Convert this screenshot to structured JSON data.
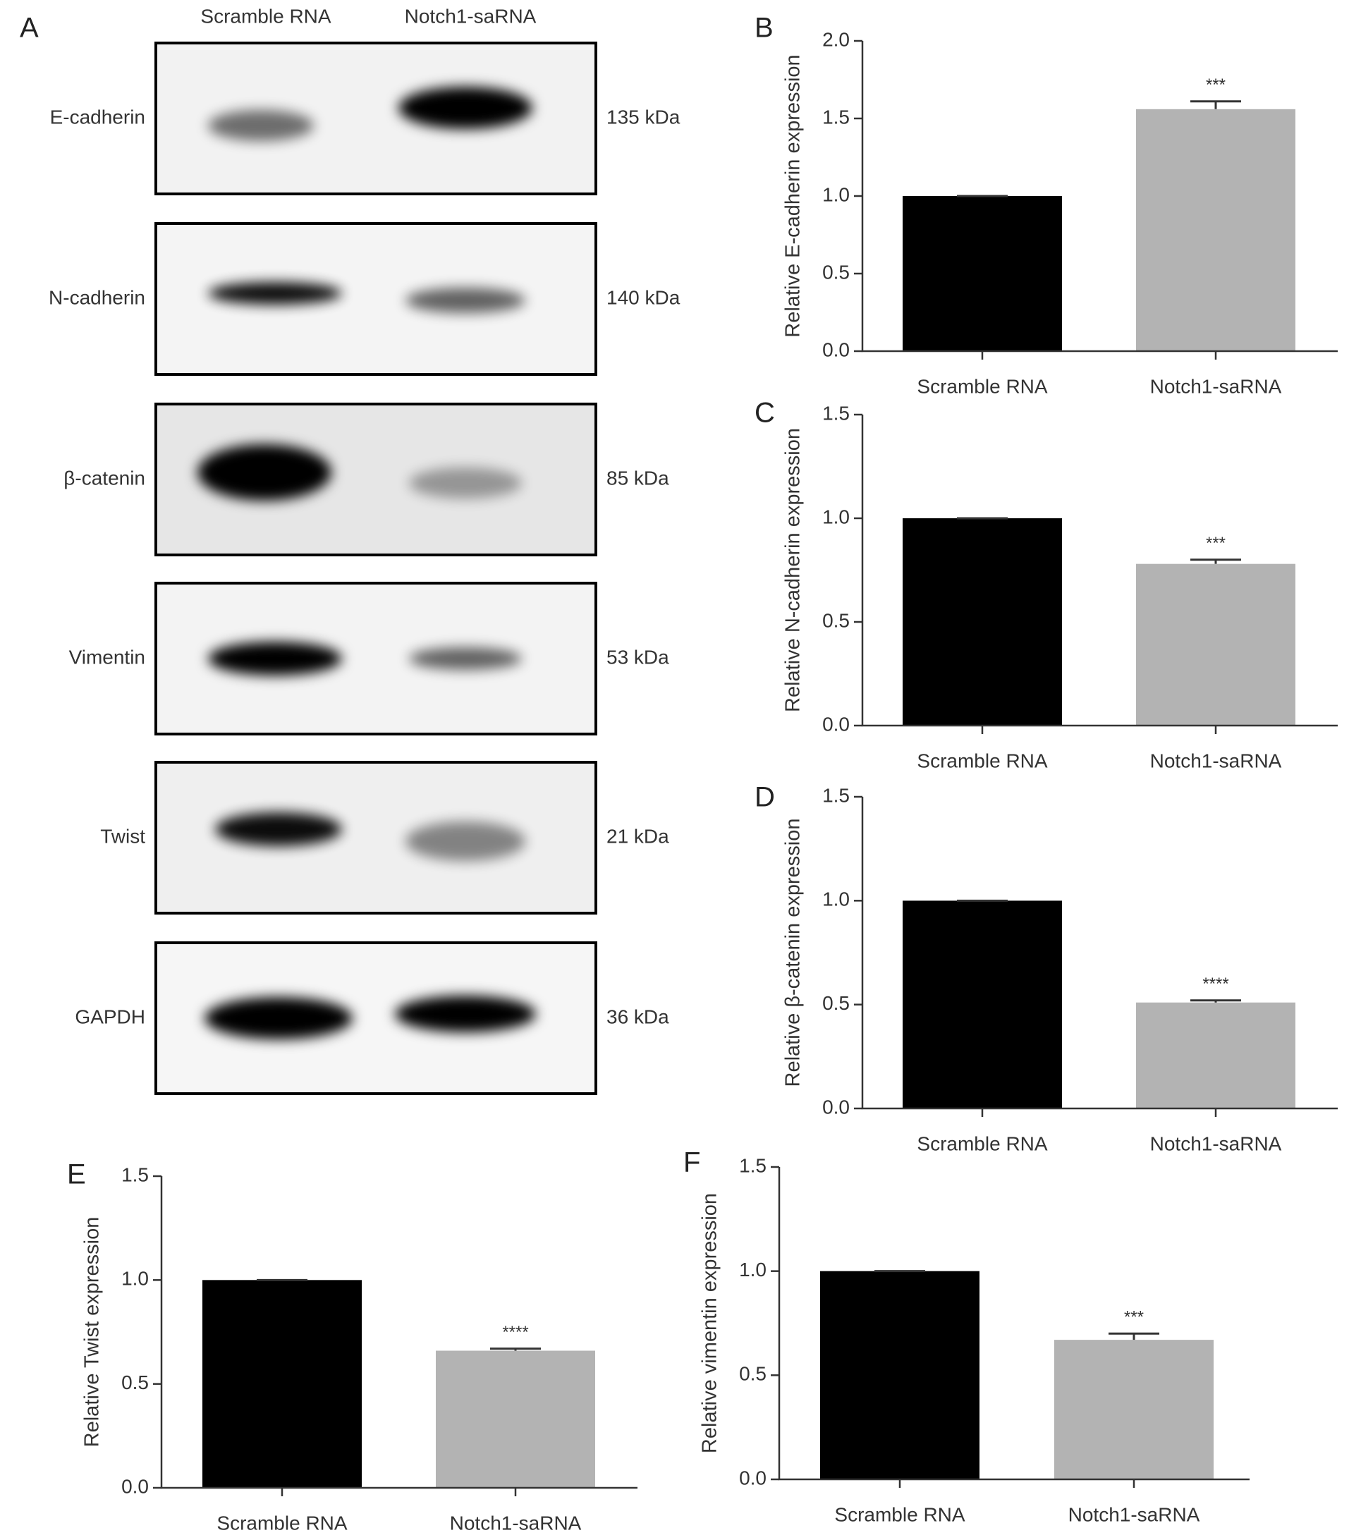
{
  "blot": {
    "panel": "A",
    "lanes": [
      "Scramble RNA",
      "Notch1-saRNA"
    ],
    "rows": [
      {
        "protein": "E-cadherin",
        "size": "135 kDa"
      },
      {
        "protein": "N-cadherin",
        "size": "140 kDa"
      },
      {
        "protein": "β-catenin",
        "size": "85 kDa"
      },
      {
        "protein": "Vimentin",
        "size": "53 kDa"
      },
      {
        "protein": "Twist",
        "size": "21 kDa"
      },
      {
        "protein": "GAPDH",
        "size": "36 kDa"
      }
    ]
  },
  "chart_data": [
    {
      "type": "bar",
      "panel": "B",
      "ylabel": "Relative E-cadherin expression",
      "categories": [
        "Scramble RNA",
        "Notch1-saRNA"
      ],
      "values": [
        1.0,
        1.56
      ],
      "errors": [
        0,
        0.05
      ],
      "significance": [
        null,
        "***"
      ],
      "colors": [
        "#000000",
        "#b3b3b3"
      ],
      "ylim": [
        0,
        2
      ],
      "yticks": [
        {
          "value": 0,
          "label": "0.0"
        },
        0.5,
        {
          "value": 1,
          "label": "1.0"
        },
        1.5,
        {
          "value": 2,
          "label": "2.0"
        }
      ]
    },
    {
      "type": "bar",
      "panel": "C",
      "ylabel": "Relative N-cadherin expression",
      "categories": [
        "Scramble RNA",
        "Notch1-saRNA"
      ],
      "values": [
        1.0,
        0.78
      ],
      "errors": [
        0,
        0.02
      ],
      "significance": [
        null,
        "***"
      ],
      "colors": [
        "#000000",
        "#b3b3b3"
      ],
      "ylim": [
        0,
        1.5
      ],
      "yticks": [
        {
          "value": 0,
          "label": "0.0"
        },
        0.5,
        {
          "value": 1,
          "label": "1.0"
        },
        1.5
      ]
    },
    {
      "type": "bar",
      "panel": "D",
      "ylabel": "Relative β-catenin expression",
      "categories": [
        "Scramble RNA",
        "Notch1-saRNA"
      ],
      "values": [
        1.0,
        0.51
      ],
      "errors": [
        0,
        0.01
      ],
      "significance": [
        null,
        "****"
      ],
      "colors": [
        "#000000",
        "#b3b3b3"
      ],
      "ylim": [
        0,
        1.5
      ],
      "yticks": [
        {
          "value": 0,
          "label": "0.0"
        },
        0.5,
        {
          "value": 1,
          "label": "1.0"
        },
        1.5
      ]
    },
    {
      "type": "bar",
      "panel": "E",
      "ylabel": "Relative Twist expression",
      "categories": [
        "Scramble RNA",
        "Notch1-saRNA"
      ],
      "values": [
        1.0,
        0.66
      ],
      "errors": [
        0,
        0.01
      ],
      "significance": [
        null,
        "****"
      ],
      "colors": [
        "#000000",
        "#b3b3b3"
      ],
      "ylim": [
        0,
        1.5
      ],
      "yticks": [
        {
          "value": 0,
          "label": "0.0"
        },
        0.5,
        {
          "value": 1,
          "label": "1.0"
        },
        1.5
      ]
    },
    {
      "type": "bar",
      "panel": "F",
      "ylabel": "Relative vimentin expression",
      "categories": [
        "Scramble RNA",
        "Notch1-saRNA"
      ],
      "values": [
        1.0,
        0.67
      ],
      "errors": [
        0,
        0.03
      ],
      "significance": [
        null,
        "***"
      ],
      "colors": [
        "#000000",
        "#b3b3b3"
      ],
      "ylim": [
        0,
        1.5
      ],
      "yticks": [
        {
          "value": 0,
          "label": "0.0"
        },
        0.5,
        {
          "value": 1,
          "label": "1.0"
        },
        1.5
      ]
    }
  ]
}
